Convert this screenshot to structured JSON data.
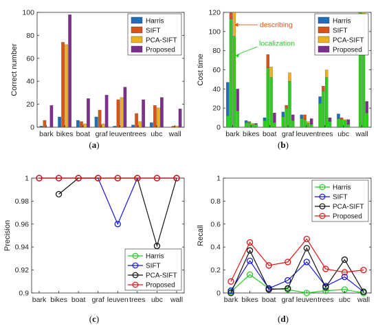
{
  "colors": {
    "Harris_bar": "#1f6fb8",
    "SIFT_bar": "#d95319",
    "PCA-SIFT_bar": "#edb120",
    "Proposed_bar": "#7e2f8e",
    "localization_bar": "#2ecc1e",
    "Harris_line": "#22cc22",
    "SIFT_line": "#1414e0",
    "PCA-SIFT_line": "#111111",
    "Proposed_line": "#e01414",
    "describing_annotation": "#d95319",
    "localization_annotation": "#22cc22"
  },
  "chart_data": [
    {
      "panel": "a",
      "type": "bar",
      "caption": "(a)",
      "ylabel": "Correct number",
      "xlabel": "",
      "ylim": [
        0,
        100
      ],
      "yticks": [
        0,
        20,
        40,
        60,
        80,
        100
      ],
      "categories": [
        "bark",
        "bikes",
        "boat",
        "graf",
        "leuven",
        "trees",
        "ubc",
        "wall"
      ],
      "legend_position": "top-right",
      "series": [
        {
          "name": "Harris",
          "values": [
            1,
            9,
            6,
            9,
            1,
            2,
            4,
            0
          ]
        },
        {
          "name": "SIFT",
          "values": [
            6,
            74,
            5,
            15,
            24,
            12,
            19,
            1
          ]
        },
        {
          "name": "PCA-SIFT",
          "values": [
            0,
            72,
            3,
            3,
            26,
            5,
            17,
            1
          ]
        },
        {
          "name": "Proposed",
          "values": [
            19,
            98,
            25,
            28,
            35,
            24,
            26,
            16
          ]
        }
      ]
    },
    {
      "panel": "b",
      "type": "bar",
      "caption": "(b)",
      "ylabel": "Cost time",
      "xlabel": "",
      "ylim": [
        0,
        120
      ],
      "yticks": [
        0,
        20,
        40,
        60,
        80,
        100,
        120
      ],
      "categories": [
        "bark",
        "bikes",
        "boat",
        "graf",
        "leuven",
        "trees",
        "ubc",
        "wall"
      ],
      "legend_position": "top-right",
      "stack_note": "each bar stacks a localization part (green) under a describing part (method color)",
      "series": [
        {
          "name": "Harris",
          "localization": [
            12,
            5,
            7,
            11,
            9,
            25,
            9,
            0
          ],
          "describing": [
            35,
            2,
            3,
            5,
            4,
            7,
            5,
            0
          ]
        },
        {
          "name": "SIFT",
          "localization": [
            113,
            5,
            62,
            20,
            8,
            38,
            8,
            120
          ],
          "describing": [
            7,
            1,
            14,
            3,
            5,
            5,
            2,
            0
          ]
        },
        {
          "name": "PCA-SIFT",
          "localization": [
            95,
            3,
            52,
            48,
            4,
            52,
            7,
            80
          ],
          "describing": [
            25,
            1,
            11,
            9,
            2,
            8,
            1,
            40
          ]
        },
        {
          "name": "Proposed",
          "localization": [
            17,
            3,
            5,
            7,
            3,
            6,
            3,
            15
          ],
          "describing": [
            23,
            1,
            10,
            6,
            6,
            4,
            5,
            12
          ]
        }
      ],
      "annotations": [
        {
          "text": "describing"
        },
        {
          "text": "localization"
        }
      ]
    },
    {
      "panel": "c",
      "type": "line",
      "caption": "(c)",
      "ylabel": "Precision",
      "xlabel": "",
      "ylim": [
        0.9,
        1.0
      ],
      "yticks": [
        0.9,
        0.92,
        0.94,
        0.96,
        0.98,
        1
      ],
      "categories": [
        "bark",
        "bikes",
        "boat",
        "graf",
        "leuven",
        "trees",
        "ubc",
        "wall"
      ],
      "legend_position": "bottom-right",
      "series": [
        {
          "name": "Harris",
          "values": [
            1,
            1,
            1,
            1,
            1,
            1,
            1,
            1
          ]
        },
        {
          "name": "SIFT",
          "values": [
            1,
            1,
            1,
            1,
            0.96,
            1,
            1,
            1
          ]
        },
        {
          "name": "PCA-SIFT",
          "values": [
            null,
            0.986,
            1,
            1,
            1,
            1,
            0.941,
            1
          ]
        },
        {
          "name": "Proposed",
          "values": [
            1,
            1,
            1,
            1,
            1,
            1,
            1,
            1
          ]
        }
      ]
    },
    {
      "panel": "d",
      "type": "line",
      "caption": "(d)",
      "ylabel": "Recall",
      "xlabel": "",
      "ylim": [
        0,
        1
      ],
      "yticks": [
        0,
        0.2,
        0.4,
        0.6,
        0.8,
        1
      ],
      "categories": [
        "bark",
        "bikes",
        "boat",
        "graf",
        "leuven",
        "trees",
        "ubc",
        "wall"
      ],
      "legend_position": "top-right",
      "series": [
        {
          "name": "Harris",
          "values": [
            0.01,
            0.16,
            0.04,
            0.03,
            0.0,
            0.02,
            0.03,
            0.0
          ]
        },
        {
          "name": "SIFT",
          "values": [
            0.02,
            0.28,
            0.04,
            0.11,
            0.27,
            0.06,
            0.14,
            0.01
          ]
        },
        {
          "name": "PCA-SIFT",
          "values": [
            0.0,
            0.37,
            0.03,
            0.04,
            0.39,
            0.05,
            0.29,
            0.01
          ]
        },
        {
          "name": "Proposed",
          "values": [
            0.1,
            0.44,
            0.24,
            0.27,
            0.47,
            0.21,
            0.18,
            0.2
          ]
        }
      ]
    }
  ]
}
